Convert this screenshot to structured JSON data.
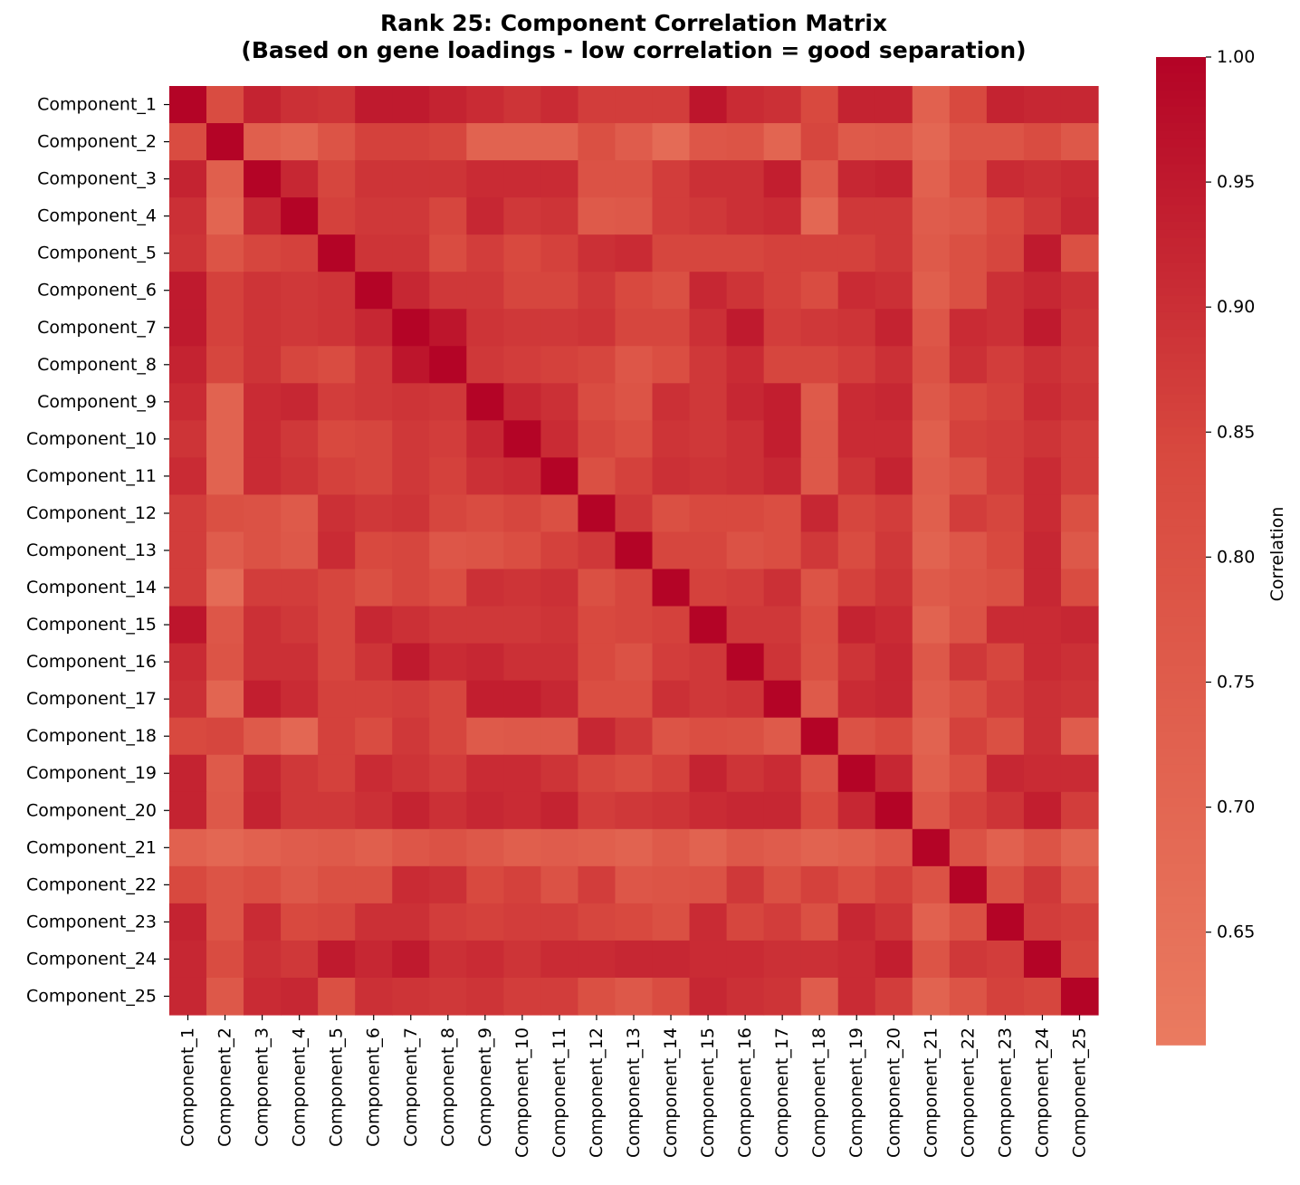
{
  "chart_data": {
    "type": "heatmap",
    "title": "Rank 25: Component Correlation Matrix",
    "subtitle": "(Based on gene loadings - low correlation = good separation)",
    "row_labels": [
      "Component_1",
      "Component_2",
      "Component_3",
      "Component_4",
      "Component_5",
      "Component_6",
      "Component_7",
      "Component_8",
      "Component_9",
      "Component_10",
      "Component_11",
      "Component_12",
      "Component_13",
      "Component_14",
      "Component_15",
      "Component_16",
      "Component_17",
      "Component_18",
      "Component_19",
      "Component_20",
      "Component_21",
      "Component_22",
      "Component_23",
      "Component_24",
      "Component_25"
    ],
    "col_labels": [
      "Component_1",
      "Component_2",
      "Component_3",
      "Component_4",
      "Component_5",
      "Component_6",
      "Component_7",
      "Component_8",
      "Component_9",
      "Component_10",
      "Component_11",
      "Component_12",
      "Component_13",
      "Component_14",
      "Component_15",
      "Component_16",
      "Component_17",
      "Component_18",
      "Component_19",
      "Component_20",
      "Component_21",
      "Component_22",
      "Component_23",
      "Component_24",
      "Component_25"
    ],
    "values": [
      [
        1.0,
        0.83,
        0.93,
        0.9,
        0.89,
        0.95,
        0.95,
        0.93,
        0.91,
        0.89,
        0.91,
        0.87,
        0.87,
        0.87,
        0.96,
        0.91,
        0.9,
        0.84,
        0.93,
        0.93,
        0.73,
        0.84,
        0.93,
        0.92,
        0.92
      ],
      [
        0.83,
        1.0,
        0.74,
        0.71,
        0.79,
        0.86,
        0.86,
        0.85,
        0.72,
        0.72,
        0.72,
        0.81,
        0.75,
        0.68,
        0.78,
        0.79,
        0.71,
        0.85,
        0.76,
        0.77,
        0.7,
        0.79,
        0.79,
        0.83,
        0.77
      ],
      [
        0.93,
        0.74,
        1.0,
        0.92,
        0.85,
        0.89,
        0.89,
        0.89,
        0.91,
        0.91,
        0.91,
        0.8,
        0.8,
        0.87,
        0.9,
        0.9,
        0.94,
        0.76,
        0.92,
        0.93,
        0.73,
        0.82,
        0.91,
        0.9,
        0.91
      ],
      [
        0.9,
        0.71,
        0.92,
        1.0,
        0.86,
        0.88,
        0.88,
        0.85,
        0.92,
        0.88,
        0.89,
        0.76,
        0.77,
        0.87,
        0.88,
        0.9,
        0.91,
        0.7,
        0.88,
        0.88,
        0.75,
        0.77,
        0.84,
        0.88,
        0.92
      ],
      [
        0.89,
        0.79,
        0.85,
        0.86,
        1.0,
        0.89,
        0.89,
        0.83,
        0.87,
        0.84,
        0.86,
        0.9,
        0.91,
        0.85,
        0.85,
        0.85,
        0.86,
        0.86,
        0.86,
        0.88,
        0.76,
        0.81,
        0.85,
        0.95,
        0.81
      ],
      [
        0.95,
        0.86,
        0.89,
        0.88,
        0.89,
        1.0,
        0.92,
        0.88,
        0.88,
        0.85,
        0.85,
        0.88,
        0.84,
        0.81,
        0.92,
        0.89,
        0.86,
        0.83,
        0.91,
        0.9,
        0.74,
        0.81,
        0.9,
        0.92,
        0.9
      ],
      [
        0.95,
        0.86,
        0.89,
        0.88,
        0.89,
        0.92,
        1.0,
        0.96,
        0.89,
        0.88,
        0.88,
        0.89,
        0.85,
        0.85,
        0.9,
        0.95,
        0.87,
        0.88,
        0.89,
        0.93,
        0.78,
        0.91,
        0.9,
        0.95,
        0.89
      ],
      [
        0.93,
        0.85,
        0.89,
        0.85,
        0.83,
        0.88,
        0.96,
        1.0,
        0.88,
        0.87,
        0.86,
        0.85,
        0.78,
        0.82,
        0.88,
        0.91,
        0.85,
        0.85,
        0.87,
        0.9,
        0.8,
        0.9,
        0.87,
        0.9,
        0.88
      ],
      [
        0.91,
        0.72,
        0.91,
        0.92,
        0.87,
        0.88,
        0.89,
        0.88,
        1.0,
        0.92,
        0.9,
        0.83,
        0.79,
        0.9,
        0.88,
        0.92,
        0.94,
        0.76,
        0.91,
        0.92,
        0.77,
        0.84,
        0.86,
        0.91,
        0.89
      ],
      [
        0.89,
        0.72,
        0.91,
        0.88,
        0.84,
        0.85,
        0.88,
        0.87,
        0.92,
        1.0,
        0.91,
        0.85,
        0.82,
        0.89,
        0.88,
        0.9,
        0.94,
        0.77,
        0.91,
        0.91,
        0.74,
        0.86,
        0.87,
        0.89,
        0.87
      ],
      [
        0.91,
        0.72,
        0.91,
        0.89,
        0.86,
        0.85,
        0.88,
        0.86,
        0.9,
        0.91,
        1.0,
        0.81,
        0.86,
        0.9,
        0.89,
        0.9,
        0.92,
        0.77,
        0.89,
        0.93,
        0.75,
        0.8,
        0.87,
        0.91,
        0.87
      ],
      [
        0.87,
        0.81,
        0.8,
        0.76,
        0.9,
        0.88,
        0.89,
        0.85,
        0.83,
        0.85,
        0.81,
        1.0,
        0.88,
        0.81,
        0.84,
        0.84,
        0.82,
        0.92,
        0.85,
        0.87,
        0.74,
        0.87,
        0.85,
        0.91,
        0.81
      ],
      [
        0.87,
        0.75,
        0.8,
        0.77,
        0.91,
        0.84,
        0.85,
        0.78,
        0.79,
        0.82,
        0.86,
        0.88,
        1.0,
        0.85,
        0.85,
        0.8,
        0.82,
        0.88,
        0.83,
        0.88,
        0.72,
        0.78,
        0.84,
        0.92,
        0.77
      ],
      [
        0.87,
        0.68,
        0.87,
        0.87,
        0.85,
        0.81,
        0.85,
        0.82,
        0.9,
        0.89,
        0.9,
        0.81,
        0.85,
        1.0,
        0.86,
        0.87,
        0.9,
        0.79,
        0.86,
        0.89,
        0.76,
        0.79,
        0.81,
        0.92,
        0.83
      ],
      [
        0.96,
        0.78,
        0.9,
        0.88,
        0.85,
        0.92,
        0.9,
        0.88,
        0.88,
        0.88,
        0.89,
        0.84,
        0.85,
        0.86,
        1.0,
        0.88,
        0.88,
        0.82,
        0.93,
        0.91,
        0.72,
        0.8,
        0.91,
        0.91,
        0.92
      ],
      [
        0.91,
        0.79,
        0.9,
        0.9,
        0.85,
        0.89,
        0.95,
        0.91,
        0.92,
        0.9,
        0.9,
        0.84,
        0.8,
        0.87,
        0.88,
        1.0,
        0.89,
        0.81,
        0.89,
        0.92,
        0.77,
        0.88,
        0.85,
        0.91,
        0.9
      ],
      [
        0.9,
        0.71,
        0.94,
        0.91,
        0.86,
        0.86,
        0.87,
        0.85,
        0.94,
        0.94,
        0.92,
        0.82,
        0.82,
        0.9,
        0.88,
        0.89,
        1.0,
        0.76,
        0.91,
        0.92,
        0.75,
        0.81,
        0.87,
        0.9,
        0.89
      ],
      [
        0.84,
        0.85,
        0.76,
        0.7,
        0.86,
        0.83,
        0.88,
        0.85,
        0.76,
        0.77,
        0.77,
        0.92,
        0.88,
        0.79,
        0.82,
        0.81,
        0.76,
        1.0,
        0.8,
        0.84,
        0.72,
        0.86,
        0.81,
        0.9,
        0.75
      ],
      [
        0.93,
        0.76,
        0.92,
        0.88,
        0.86,
        0.91,
        0.89,
        0.87,
        0.91,
        0.91,
        0.89,
        0.85,
        0.83,
        0.86,
        0.93,
        0.89,
        0.91,
        0.8,
        1.0,
        0.92,
        0.74,
        0.82,
        0.92,
        0.91,
        0.91
      ],
      [
        0.93,
        0.77,
        0.93,
        0.88,
        0.88,
        0.9,
        0.93,
        0.9,
        0.92,
        0.91,
        0.93,
        0.87,
        0.88,
        0.89,
        0.91,
        0.92,
        0.92,
        0.84,
        0.92,
        1.0,
        0.78,
        0.86,
        0.89,
        0.94,
        0.87
      ],
      [
        0.73,
        0.7,
        0.73,
        0.75,
        0.76,
        0.74,
        0.78,
        0.8,
        0.77,
        0.74,
        0.75,
        0.74,
        0.72,
        0.76,
        0.72,
        0.77,
        0.75,
        0.72,
        0.74,
        0.78,
        1.0,
        0.8,
        0.73,
        0.79,
        0.72
      ],
      [
        0.84,
        0.79,
        0.82,
        0.77,
        0.81,
        0.81,
        0.91,
        0.9,
        0.84,
        0.86,
        0.8,
        0.87,
        0.78,
        0.79,
        0.8,
        0.88,
        0.81,
        0.86,
        0.82,
        0.86,
        0.8,
        1.0,
        0.81,
        0.88,
        0.79
      ],
      [
        0.93,
        0.79,
        0.91,
        0.84,
        0.85,
        0.9,
        0.9,
        0.87,
        0.86,
        0.87,
        0.87,
        0.85,
        0.84,
        0.81,
        0.91,
        0.85,
        0.87,
        0.81,
        0.92,
        0.89,
        0.73,
        0.81,
        1.0,
        0.87,
        0.86
      ],
      [
        0.92,
        0.83,
        0.9,
        0.88,
        0.95,
        0.92,
        0.95,
        0.9,
        0.91,
        0.89,
        0.91,
        0.91,
        0.92,
        0.92,
        0.91,
        0.91,
        0.9,
        0.9,
        0.91,
        0.94,
        0.79,
        0.88,
        0.87,
        1.0,
        0.85
      ],
      [
        0.92,
        0.77,
        0.91,
        0.92,
        0.81,
        0.9,
        0.89,
        0.88,
        0.89,
        0.87,
        0.87,
        0.81,
        0.77,
        0.83,
        0.92,
        0.9,
        0.89,
        0.75,
        0.91,
        0.87,
        0.72,
        0.79,
        0.86,
        0.85,
        1.0
      ]
    ],
    "colorbar": {
      "label": "Correlation",
      "range": [
        0.605,
        1.0
      ],
      "ticks": [
        "0.65",
        "0.70",
        "0.75",
        "0.80",
        "0.85",
        "0.90",
        "0.95",
        "1.00"
      ],
      "colormap": "coolwarm (upper half)",
      "low_color": "#ea7b60",
      "high_color": "#b40426"
    },
    "grid": false
  }
}
